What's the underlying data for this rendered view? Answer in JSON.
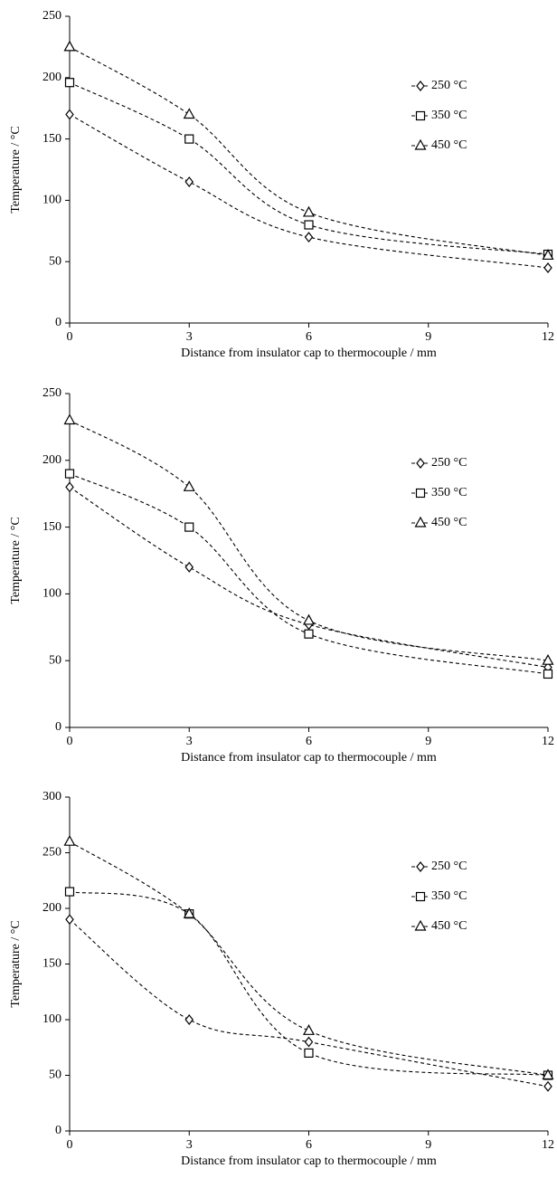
{
  "chart_data": [
    {
      "type": "line",
      "xlabel": "Distance from insulator cap to thermocouple / mm",
      "ylabel": "Temperature / °C",
      "x": [
        0,
        3,
        6,
        12
      ],
      "xlim": [
        0,
        12
      ],
      "xticks": [
        0,
        3,
        6,
        9,
        12
      ],
      "ylim": [
        0,
        250
      ],
      "yticks": [
        0,
        50,
        100,
        150,
        200,
        250
      ],
      "legend": "upper right",
      "series": [
        {
          "name": "250 °C",
          "color": "#000000",
          "marker": "diamond",
          "values": [
            170,
            115,
            70,
            45
          ]
        },
        {
          "name": "350 °C",
          "color": "#000000",
          "marker": "square",
          "values": [
            196,
            150,
            80,
            56
          ]
        },
        {
          "name": "450 °C",
          "color": "#000000",
          "marker": "triangle",
          "values": [
            225,
            170,
            90,
            55
          ]
        }
      ]
    },
    {
      "type": "line",
      "xlabel": "Distance from insulator cap to thermocouple / mm",
      "ylabel": "Temperature / °C",
      "x": [
        0,
        3,
        6,
        12
      ],
      "xlim": [
        0,
        12
      ],
      "xticks": [
        0,
        3,
        6,
        9,
        12
      ],
      "ylim": [
        0,
        250
      ],
      "yticks": [
        0,
        50,
        100,
        150,
        200,
        250
      ],
      "legend": "upper right",
      "series": [
        {
          "name": "250 °C",
          "color": "#000000",
          "marker": "diamond",
          "values": [
            180,
            120,
            77,
            45
          ]
        },
        {
          "name": "350 °C",
          "color": "#000000",
          "marker": "square",
          "values": [
            190,
            150,
            70,
            40
          ]
        },
        {
          "name": "450 °C",
          "color": "#000000",
          "marker": "triangle",
          "values": [
            230,
            180,
            80,
            50
          ]
        }
      ]
    },
    {
      "type": "line",
      "xlabel": "Distance from insulator cap to thermocouple / mm",
      "ylabel": "Temperature / °C",
      "x": [
        0,
        3,
        6,
        12
      ],
      "xlim": [
        0,
        12
      ],
      "xticks": [
        0,
        3,
        6,
        9,
        12
      ],
      "ylim": [
        0,
        300
      ],
      "yticks": [
        0,
        50,
        100,
        150,
        200,
        250,
        300
      ],
      "legend": "upper right",
      "series": [
        {
          "name": "250 °C",
          "color": "#000000",
          "marker": "diamond",
          "values": [
            190,
            100,
            80,
            40
          ]
        },
        {
          "name": "350 °C",
          "color": "#000000",
          "marker": "square",
          "values": [
            215,
            195,
            70,
            50
          ]
        },
        {
          "name": "450 °C",
          "color": "#000000",
          "marker": "triangle",
          "values": [
            260,
            195,
            90,
            50
          ]
        }
      ]
    }
  ]
}
